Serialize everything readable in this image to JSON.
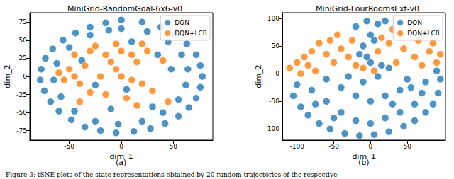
{
  "caption": "Figure 3: tSNE plots of the state representations obtained by 20 random trajectories of the respective",
  "chart_data": [
    {
      "type": "scatter",
      "title": "MiniGrid-RandomGoal-6x6-v0",
      "subfigure_label": "(a)",
      "x_label": "dim_1",
      "y_label": "dim_2",
      "xlim": [
        -88,
        88
      ],
      "ylim": [
        -88,
        88
      ],
      "xticks": [
        -50,
        0,
        50
      ],
      "yticks": [
        -75,
        -50,
        -25,
        0,
        25,
        50,
        75
      ],
      "legend": "upper right",
      "marker": "circle",
      "series": [
        {
          "name": "DQN",
          "color": "#1f77b4",
          "values": [
            [
              0,
              78
            ],
            [
              20,
              75
            ],
            [
              38,
              68
            ],
            [
              52,
              58
            ],
            [
              63,
              45
            ],
            [
              72,
              30
            ],
            [
              76,
              15
            ],
            [
              78,
              0
            ],
            [
              76,
              -15
            ],
            [
              72,
              -30
            ],
            [
              65,
              -43
            ],
            [
              55,
              -55
            ],
            [
              42,
              -65
            ],
            [
              28,
              -72
            ],
            [
              12,
              -76
            ],
            [
              -5,
              -78
            ],
            [
              -20,
              -75
            ],
            [
              -35,
              -70
            ],
            [
              -48,
              -60
            ],
            [
              -60,
              -48
            ],
            [
              -68,
              -35
            ],
            [
              -74,
              -20
            ],
            [
              -78,
              -5
            ],
            [
              -77,
              10
            ],
            [
              -73,
              25
            ],
            [
              -66,
              38
            ],
            [
              -56,
              50
            ],
            [
              -44,
              60
            ],
            [
              -30,
              68
            ],
            [
              -15,
              74
            ],
            [
              0,
              66
            ],
            [
              25,
              62
            ],
            [
              45,
              48
            ],
            [
              58,
              30
            ],
            [
              64,
              10
            ],
            [
              62,
              -12
            ],
            [
              55,
              -32
            ],
            [
              40,
              -50
            ],
            [
              20,
              -62
            ],
            [
              -3,
              -66
            ],
            [
              -25,
              -62
            ],
            [
              -45,
              -48
            ],
            [
              -58,
              -28
            ],
            [
              -65,
              -5
            ],
            [
              -62,
              18
            ],
            [
              -50,
              40
            ],
            [
              -30,
              57
            ],
            [
              -12,
              64
            ],
            [
              10,
              48
            ],
            [
              -10,
              -45
            ],
            [
              30,
              -42
            ],
            [
              -38,
              22
            ],
            [
              48,
              10
            ],
            [
              5,
              -18
            ],
            [
              -25,
              -12
            ],
            [
              35,
              30
            ]
          ]
        },
        {
          "name": "DQN+LCR",
          "color": "#ff7f0e",
          "values": [
            [
              -60,
              5
            ],
            [
              -55,
              -5
            ],
            [
              -50,
              10
            ],
            [
              -45,
              0
            ],
            [
              -40,
              -10
            ],
            [
              -35,
              15
            ],
            [
              -30,
              35
            ],
            [
              -25,
              42
            ],
            [
              -15,
              30
            ],
            [
              -10,
              20
            ],
            [
              0,
              35
            ],
            [
              -5,
              45
            ],
            [
              10,
              30
            ],
            [
              15,
              20
            ],
            [
              20,
              45
            ],
            [
              25,
              35
            ],
            [
              -20,
              0
            ],
            [
              -30,
              -22
            ],
            [
              -15,
              -25
            ],
            [
              5,
              -30
            ],
            [
              15,
              -40
            ],
            [
              20,
              -10
            ],
            [
              30,
              -20
            ],
            [
              -40,
              -35
            ],
            [
              0,
              0
            ],
            [
              10,
              -5
            ],
            [
              -5,
              10
            ],
            [
              45,
              -35
            ],
            [
              40,
              22
            ],
            [
              -45,
              30
            ]
          ]
        }
      ]
    },
    {
      "type": "scatter",
      "title": "MiniGrid-FourRoomsExt-v0",
      "subfigure_label": "(b)",
      "x_label": "dim_1",
      "y_label": "dim_2",
      "xlim": [
        -120,
        102
      ],
      "ylim": [
        -120,
        110
      ],
      "xticks": [
        -100,
        -50,
        0,
        50
      ],
      "yticks": [
        -100,
        -50,
        0,
        50,
        100
      ],
      "legend": "upper right",
      "marker": "circle",
      "series": [
        {
          "name": "DQN",
          "color": "#1f77b4",
          "values": [
            [
              -5,
              95
            ],
            [
              10,
              90
            ],
            [
              -20,
              85
            ],
            [
              20,
              95
            ],
            [
              0,
              70
            ],
            [
              -10,
              50
            ],
            [
              5,
              60
            ],
            [
              -100,
              -20
            ],
            [
              -105,
              -40
            ],
            [
              -95,
              -60
            ],
            [
              -85,
              -75
            ],
            [
              -70,
              -90
            ],
            [
              -55,
              -100
            ],
            [
              -35,
              -108
            ],
            [
              -15,
              -112
            ],
            [
              5,
              -110
            ],
            [
              25,
              -105
            ],
            [
              45,
              -95
            ],
            [
              60,
              -85
            ],
            [
              75,
              -70
            ],
            [
              85,
              -55
            ],
            [
              92,
              -35
            ],
            [
              95,
              -10
            ],
            [
              90,
              5
            ],
            [
              -80,
              -30
            ],
            [
              -60,
              -50
            ],
            [
              -40,
              -70
            ],
            [
              -20,
              -85
            ],
            [
              0,
              -90
            ],
            [
              20,
              -80
            ],
            [
              40,
              -70
            ],
            [
              60,
              -55
            ],
            [
              70,
              -35
            ],
            [
              75,
              -15
            ],
            [
              -60,
              -10
            ],
            [
              -40,
              -25
            ],
            [
              -20,
              -40
            ],
            [
              0,
              -50
            ],
            [
              20,
              -40
            ],
            [
              40,
              -30
            ],
            [
              50,
              -10
            ],
            [
              -30,
              -5
            ],
            [
              -10,
              -15
            ],
            [
              10,
              -5
            ],
            [
              25,
              10
            ],
            [
              -50,
              -80
            ],
            [
              30,
              -55
            ],
            [
              -75,
              -55
            ],
            [
              55,
              -25
            ],
            [
              0,
              20
            ],
            [
              15,
              15
            ],
            [
              -15,
              35
            ],
            [
              -5,
              30
            ]
          ]
        },
        {
          "name": "DQN+LCR",
          "color": "#ff7f0e",
          "values": [
            [
              -110,
              10
            ],
            [
              -100,
              20
            ],
            [
              -95,
              0
            ],
            [
              -90,
              30
            ],
            [
              -85,
              15
            ],
            [
              -80,
              40
            ],
            [
              -75,
              5
            ],
            [
              -70,
              55
            ],
            [
              -60,
              35
            ],
            [
              -55,
              60
            ],
            [
              -50,
              20
            ],
            [
              -45,
              70
            ],
            [
              -40,
              45
            ],
            [
              -30,
              30
            ],
            [
              -25,
              60
            ],
            [
              -20,
              15
            ],
            [
              10,
              40
            ],
            [
              15,
              65
            ],
            [
              25,
              55
            ],
            [
              30,
              80
            ],
            [
              35,
              20
            ],
            [
              40,
              70
            ],
            [
              45,
              45
            ],
            [
              55,
              85
            ],
            [
              60,
              30
            ],
            [
              65,
              60
            ],
            [
              70,
              15
            ],
            [
              75,
              75
            ],
            [
              80,
              40
            ],
            [
              85,
              55
            ],
            [
              90,
              20
            ],
            [
              95,
              35
            ],
            [
              -10,
              10
            ],
            [
              5,
              5
            ]
          ]
        }
      ]
    }
  ]
}
